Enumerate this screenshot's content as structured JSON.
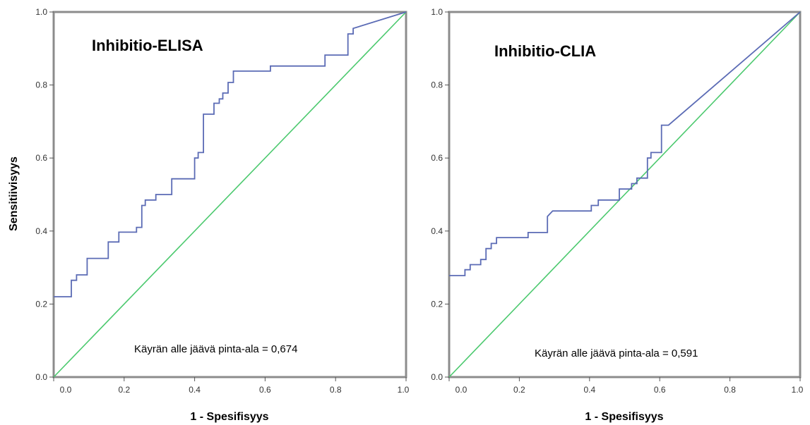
{
  "chart_data": [
    {
      "type": "line",
      "title": "Inhibitio-ELISA",
      "annotation": "Käyrän alle jäävä pinta-ala = 0,674",
      "xlabel": "1 - Spesifisyys",
      "ylabel": "Sensitiivisyys",
      "xlim": [
        0,
        1
      ],
      "ylim": [
        0,
        1
      ],
      "x_ticks": [
        "0.0",
        "0.2",
        "0.4",
        "0.6",
        "0.8",
        "1.0"
      ],
      "y_ticks": [
        "0.0",
        "0.2",
        "0.4",
        "0.6",
        "0.8",
        "1.0"
      ],
      "series": [
        {
          "color": "#5b6bb5",
          "points": [
            [
              0,
              0.22
            ],
            [
              0.05,
              0.22
            ],
            [
              0.05,
              0.265
            ],
            [
              0.065,
              0.265
            ],
            [
              0.065,
              0.28
            ],
            [
              0.095,
              0.28
            ],
            [
              0.095,
              0.325
            ],
            [
              0.155,
              0.325
            ],
            [
              0.155,
              0.37
            ],
            [
              0.185,
              0.37
            ],
            [
              0.185,
              0.397
            ],
            [
              0.235,
              0.397
            ],
            [
              0.235,
              0.41
            ],
            [
              0.25,
              0.41
            ],
            [
              0.25,
              0.47
            ],
            [
              0.26,
              0.47
            ],
            [
              0.26,
              0.485
            ],
            [
              0.29,
              0.485
            ],
            [
              0.29,
              0.5
            ],
            [
              0.335,
              0.5
            ],
            [
              0.335,
              0.543
            ],
            [
              0.4,
              0.543
            ],
            [
              0.4,
              0.6
            ],
            [
              0.41,
              0.6
            ],
            [
              0.41,
              0.615
            ],
            [
              0.425,
              0.615
            ],
            [
              0.425,
              0.72
            ],
            [
              0.455,
              0.72
            ],
            [
              0.455,
              0.75
            ],
            [
              0.47,
              0.75
            ],
            [
              0.47,
              0.762
            ],
            [
              0.48,
              0.762
            ],
            [
              0.48,
              0.778
            ],
            [
              0.495,
              0.778
            ],
            [
              0.495,
              0.807
            ],
            [
              0.51,
              0.807
            ],
            [
              0.51,
              0.838
            ],
            [
              0.615,
              0.838
            ],
            [
              0.615,
              0.852
            ],
            [
              0.77,
              0.852
            ],
            [
              0.77,
              0.882
            ],
            [
              0.835,
              0.882
            ],
            [
              0.835,
              0.94
            ],
            [
              0.85,
              0.94
            ],
            [
              0.85,
              0.955
            ],
            [
              1,
              1
            ]
          ]
        },
        {
          "color": "#4bc96e",
          "points": [
            [
              0,
              0
            ],
            [
              1,
              1
            ]
          ]
        }
      ]
    },
    {
      "type": "line",
      "title": "Inhibitio-CLIA",
      "annotation": "Käyrän alle jäävä pinta-ala = 0,591",
      "xlabel": "1 - Spesifisyys",
      "ylabel": "",
      "xlim": [
        0,
        1
      ],
      "ylim": [
        0,
        1
      ],
      "x_ticks": [
        "0.0",
        "0.2",
        "0.4",
        "0.6",
        "0.8",
        "1.0"
      ],
      "y_ticks": [
        "0.0",
        "0.2",
        "0.4",
        "0.6",
        "0.8",
        "1.0"
      ],
      "series": [
        {
          "color": "#5b6bb5",
          "points": [
            [
              0,
              0.278
            ],
            [
              0.045,
              0.278
            ],
            [
              0.045,
              0.294
            ],
            [
              0.06,
              0.294
            ],
            [
              0.06,
              0.308
            ],
            [
              0.09,
              0.308
            ],
            [
              0.09,
              0.322
            ],
            [
              0.105,
              0.322
            ],
            [
              0.105,
              0.352
            ],
            [
              0.12,
              0.352
            ],
            [
              0.12,
              0.366
            ],
            [
              0.135,
              0.366
            ],
            [
              0.135,
              0.382
            ],
            [
              0.225,
              0.382
            ],
            [
              0.225,
              0.396
            ],
            [
              0.28,
              0.396
            ],
            [
              0.28,
              0.44
            ],
            [
              0.295,
              0.455
            ],
            [
              0.405,
              0.455
            ],
            [
              0.405,
              0.47
            ],
            [
              0.425,
              0.47
            ],
            [
              0.425,
              0.485
            ],
            [
              0.485,
              0.485
            ],
            [
              0.485,
              0.515
            ],
            [
              0.52,
              0.515
            ],
            [
              0.52,
              0.53
            ],
            [
              0.535,
              0.53
            ],
            [
              0.535,
              0.545
            ],
            [
              0.565,
              0.545
            ],
            [
              0.565,
              0.6
            ],
            [
              0.575,
              0.6
            ],
            [
              0.575,
              0.615
            ],
            [
              0.605,
              0.615
            ],
            [
              0.605,
              0.69
            ],
            [
              0.625,
              0.69
            ],
            [
              1,
              1
            ]
          ]
        },
        {
          "color": "#4bc96e",
          "points": [
            [
              0,
              0
            ],
            [
              1,
              1
            ]
          ]
        }
      ]
    }
  ]
}
